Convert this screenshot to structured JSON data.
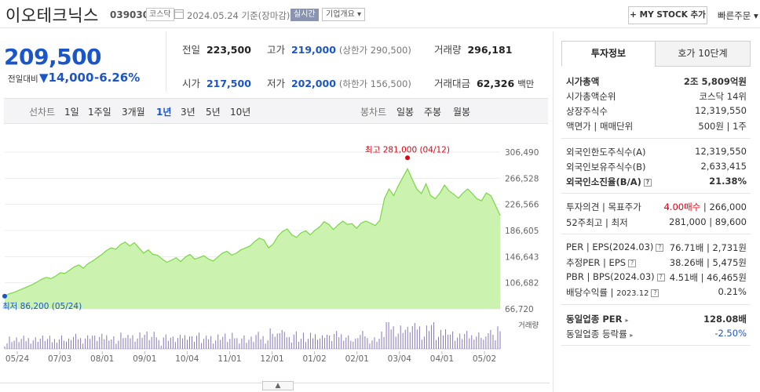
{
  "header": {
    "name": "이오테크닉스",
    "code": "039030",
    "market": "코스닥",
    "date": "2024.05.24",
    "basis": "기준(장마감)",
    "live": "실시간",
    "company_info": "기업개요",
    "my_stock": "+ MY STOCK 추가",
    "quick_order": "빠른주문"
  },
  "price": {
    "current": "209,500",
    "compare_label": "전일대비",
    "change": "14,000",
    "change_pct": "-6.26%",
    "color": "#1a55c9"
  },
  "stats": {
    "prev_label": "전일",
    "prev": "223,500",
    "high_label": "고가",
    "high": "219,000",
    "upper_limit": "(상한가 290,500)",
    "volume_label": "거래량",
    "volume": "296,181",
    "open_label": "시가",
    "open": "217,500",
    "low_label": "저가",
    "low": "202,000",
    "lower_limit": "(하한가 156,500)",
    "amount_label": "거래대금",
    "amount": "62,326",
    "amount_unit": "백만"
  },
  "line_tabs": {
    "label": "선차트",
    "items": [
      "1일",
      "1주일",
      "3개월",
      "1년",
      "3년",
      "5년",
      "10년"
    ],
    "active": "1년"
  },
  "candle_tabs": {
    "label": "봉차트",
    "items": [
      "일봉",
      "주봉",
      "월봉"
    ]
  },
  "chart_data": {
    "type": "area",
    "y_ticks": [
      "306,490",
      "266,528",
      "226,566",
      "186,605",
      "146,643",
      "106,682",
      "66,720"
    ],
    "ylim": [
      66720,
      306490
    ],
    "x_ticks": [
      "05/24",
      "07/03",
      "08/01",
      "09/01",
      "10/04",
      "11/01",
      "12/01",
      "01/02",
      "02/01",
      "03/04",
      "04/01",
      "05/02"
    ],
    "high_label": "최고 281,000 (04/12)",
    "low_label": "최저 86,200 (05/24)",
    "volume_label": "거래량",
    "values": [
      86200,
      90000,
      92000,
      95000,
      98000,
      101000,
      104000,
      108000,
      112000,
      115000,
      113000,
      117000,
      122000,
      121000,
      126000,
      131000,
      134000,
      129000,
      136000,
      140000,
      145000,
      150000,
      156000,
      160000,
      158000,
      165000,
      169000,
      163000,
      168000,
      160000,
      152000,
      157000,
      150000,
      149000,
      143000,
      138000,
      141000,
      145000,
      139000,
      146000,
      150000,
      143000,
      145000,
      148000,
      143000,
      140000,
      146000,
      152000,
      155000,
      149000,
      152000,
      157000,
      160000,
      163000,
      170000,
      175000,
      172000,
      160000,
      166000,
      178000,
      185000,
      189000,
      180000,
      176000,
      183000,
      186000,
      180000,
      187000,
      192000,
      200000,
      196000,
      188000,
      195000,
      201000,
      196000,
      197000,
      190000,
      198000,
      201000,
      198000,
      194000,
      202000,
      235000,
      250000,
      240000,
      255000,
      268000,
      281000,
      265000,
      250000,
      243000,
      258000,
      240000,
      235000,
      244000,
      256000,
      247000,
      242000,
      236000,
      244000,
      250000,
      243000,
      235000,
      232000,
      244000,
      240000,
      225000,
      209500
    ],
    "color": "#78d842",
    "fill_color": "#ccf2b0"
  },
  "info_tabs": [
    "투자정보",
    "호가 10단계"
  ],
  "info": {
    "market_cap_label": "시가총액",
    "market_cap": "2조 5,809억원",
    "cap_rank_label": "시가총액순위",
    "cap_rank": "코스닥 14위",
    "shares_label": "상장주식수",
    "shares": "12,319,550",
    "face_label": "액면가",
    "trade_unit_label": "매매단위",
    "face": "500원",
    "trade_unit": "1주",
    "foreign_limit_label": "외국인한도주식수(A)",
    "foreign_limit": "12,319,550",
    "foreign_hold_label": "외국인보유주식수(B)",
    "foreign_hold": "2,633,415",
    "foreign_ratio_label": "외국인소진율(B/A)",
    "foreign_ratio": "21.38%",
    "opinion_label": "투자의견",
    "target_label": "목표주가",
    "opinion": "4.00매수",
    "target": "266,000",
    "week52_label": "52주최고",
    "week52_low_label": "최저",
    "week52_high": "281,000",
    "week52_low": "89,600",
    "per_label": "PER",
    "eps_label": "EPS(2024.03)",
    "per": "76.71배",
    "eps": "2,731원",
    "est_per_label": "추정PER",
    "est_eps_label": "EPS",
    "est_per": "38.26배",
    "est_eps": "5,475원",
    "pbr_label": "PBR",
    "bps_label": "BPS(2024.03)",
    "pbr": "4.51배",
    "bps": "46,465원",
    "div_label": "배당수익률",
    "div_date": "2023.12",
    "div": "0.21%",
    "sector_per_label": "동일업종 PER",
    "sector_per": "128.08배",
    "sector_rate_label": "동일업종 등락률",
    "sector_rate": "-2.50%"
  },
  "colors": {
    "up": "#e60012",
    "down": "#1a55c9"
  }
}
